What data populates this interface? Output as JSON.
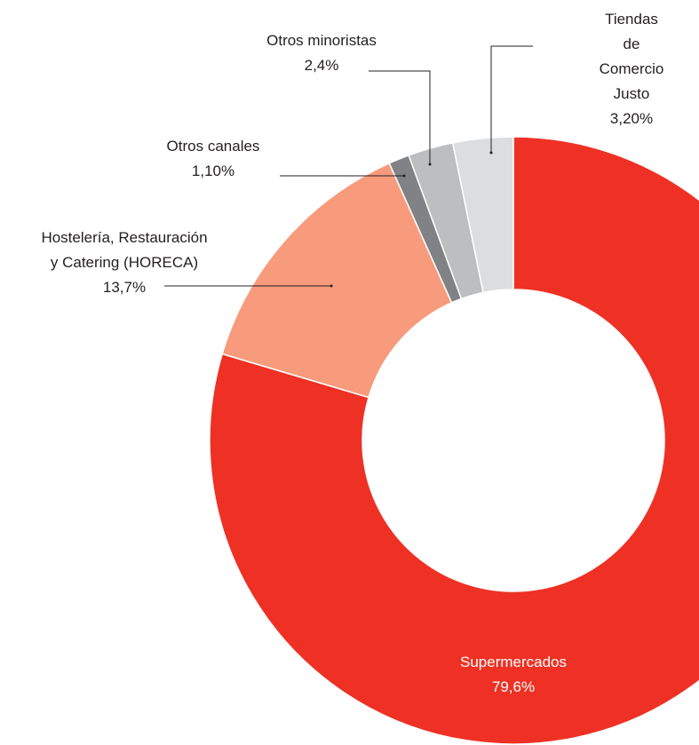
{
  "chart_data": {
    "type": "donut",
    "categories": [
      "Supermercados",
      "Hostelería, Restauración\ny Catering (HORECA)",
      "Otros canales",
      "Otros minoristas",
      "Tiendas de\nComercio Justo"
    ],
    "values": [
      79.6,
      13.7,
      1.1,
      2.4,
      3.2
    ],
    "value_labels": [
      "79,6%",
      "13,7%",
      "1,10%",
      "2,4%",
      "3,20%"
    ],
    "colors": [
      "#ee3124",
      "#f79b7c",
      "#808285",
      "#bcbec0",
      "#dcdddf"
    ]
  }
}
